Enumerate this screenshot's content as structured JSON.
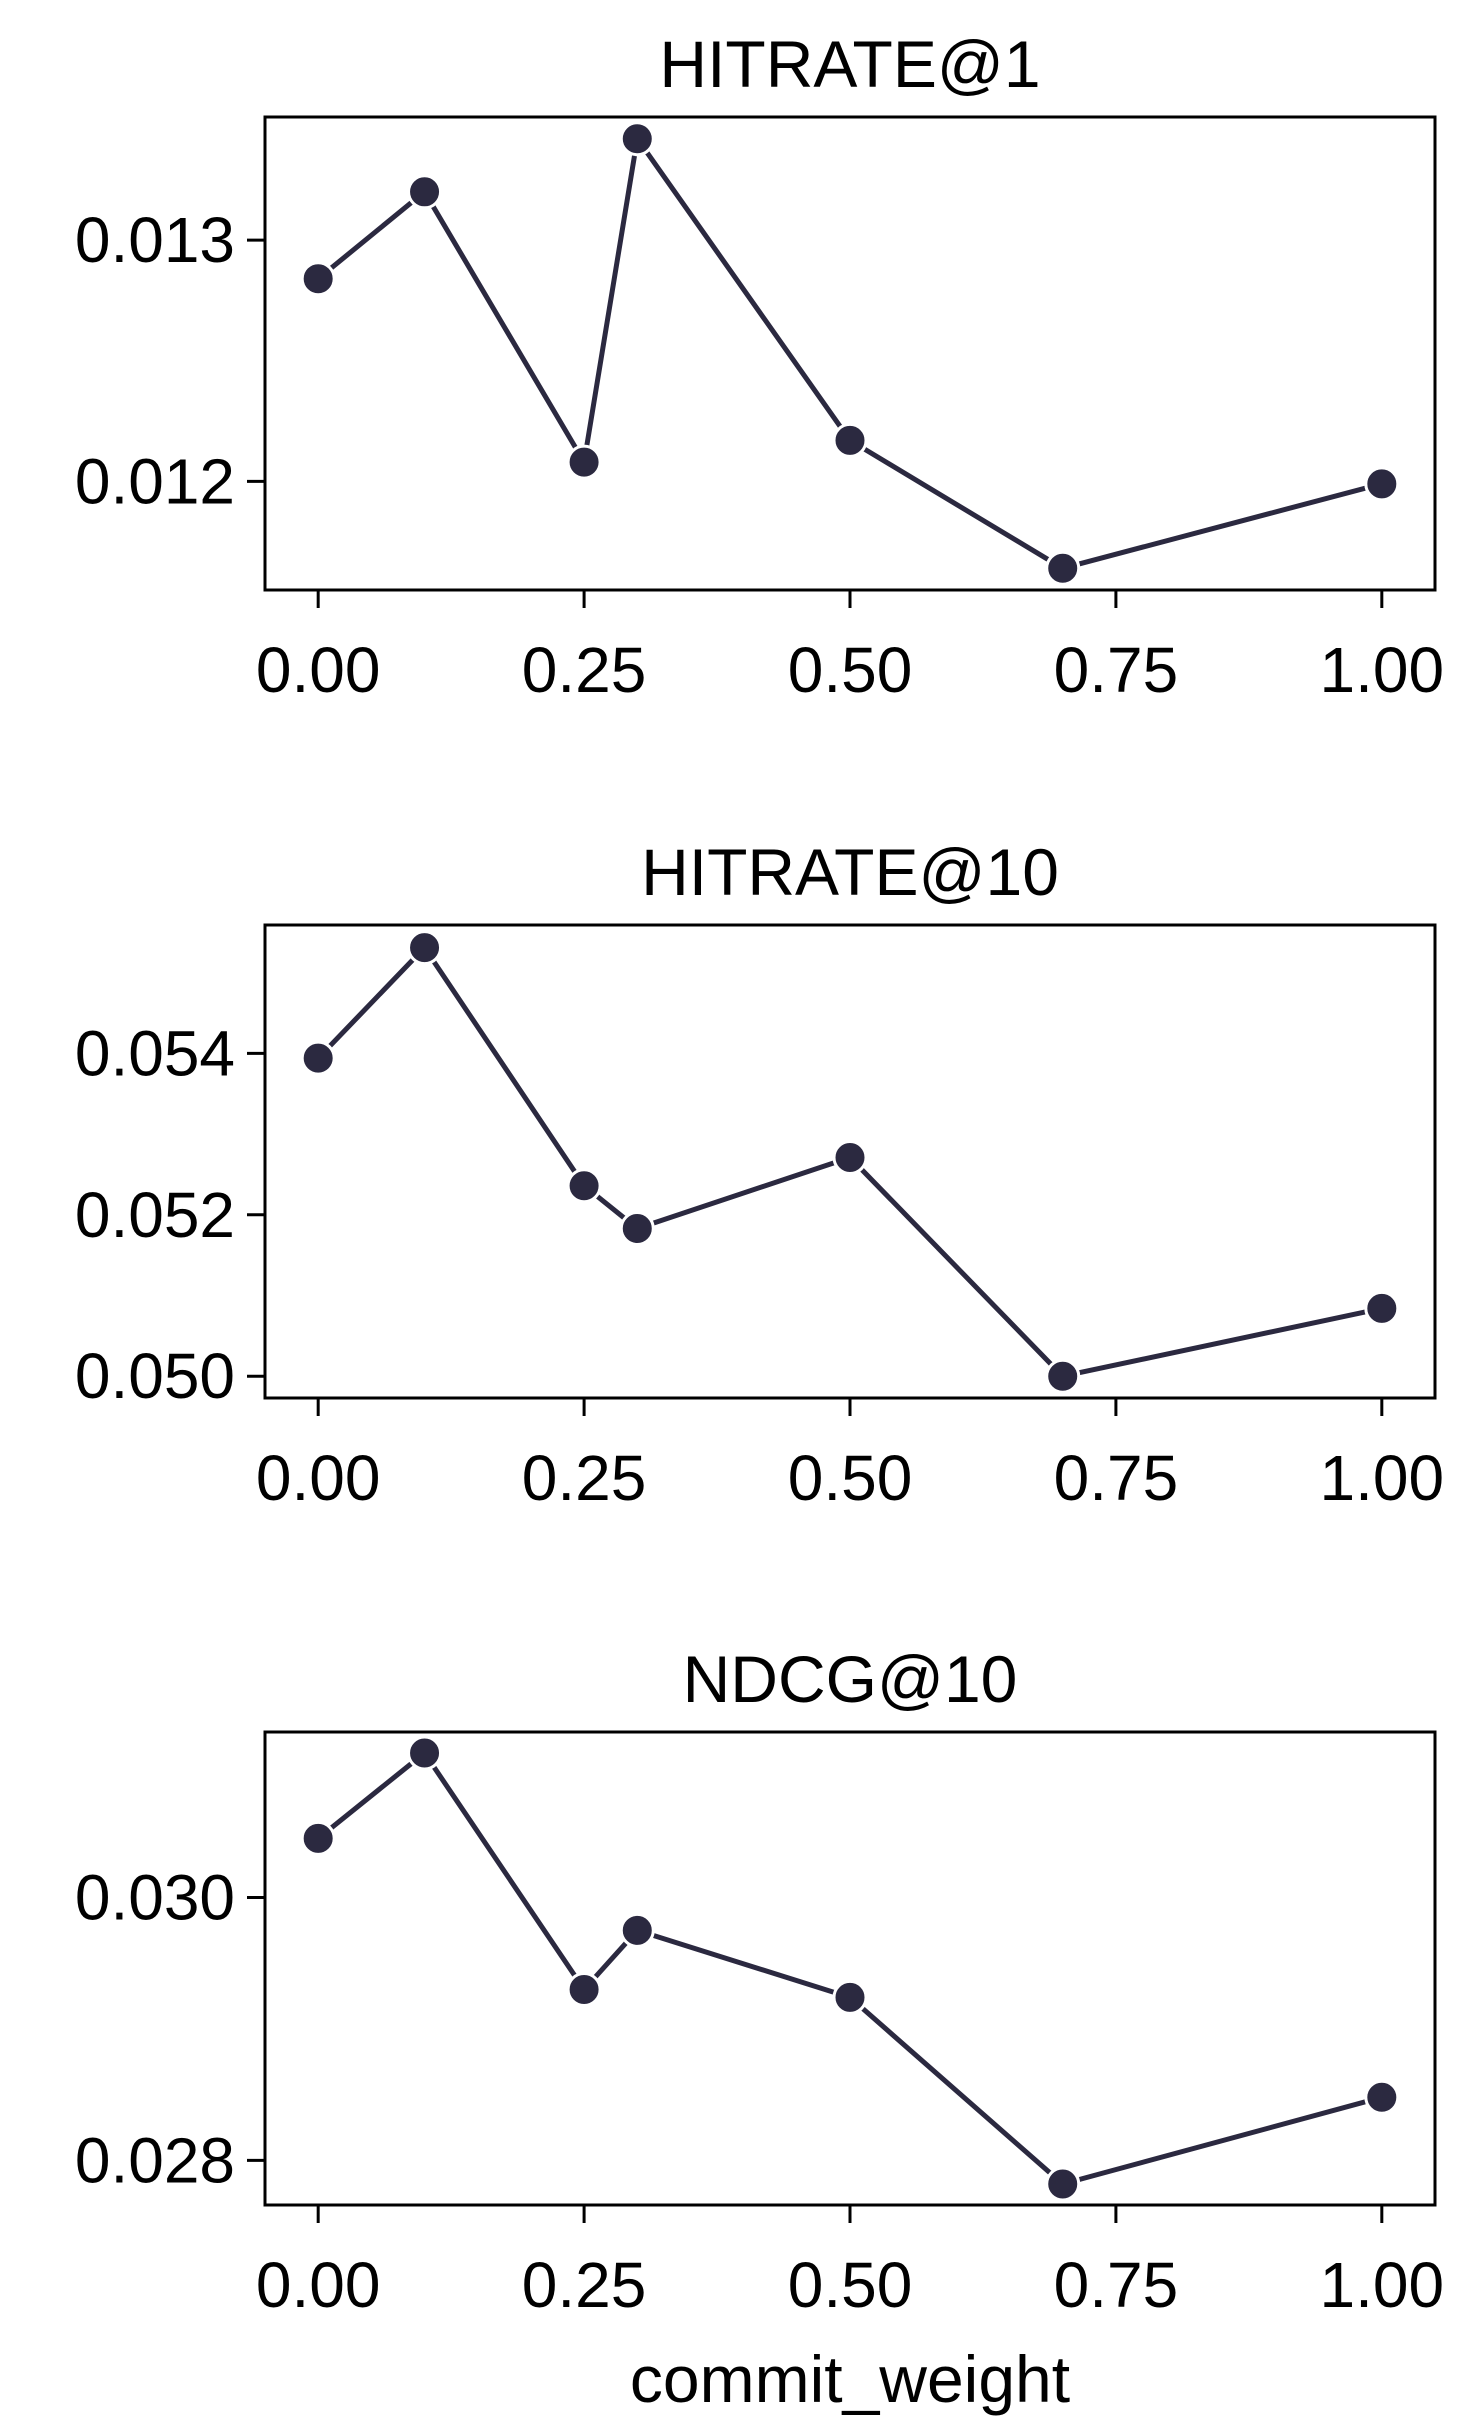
{
  "colors": {
    "line": "#2b2940",
    "marker": "#2b2940",
    "marker_edge": "#ffffff",
    "frame": "#000000"
  },
  "chart_data": [
    {
      "type": "line",
      "title": "HITRATE@1",
      "xlabel": "",
      "ylabel": "",
      "x": [
        0.0,
        0.1,
        0.25,
        0.3,
        0.5,
        0.7,
        1.0
      ],
      "values": [
        0.01284,
        0.0132,
        0.01208,
        0.01342,
        0.01217,
        0.01164,
        0.01199
      ],
      "xlim": [
        -0.05,
        1.05
      ],
      "ylim": [
        0.01155,
        0.01351
      ],
      "xticks": [
        0.0,
        0.25,
        0.5,
        0.75,
        1.0
      ],
      "xtick_labels": [
        "0.00",
        "0.25",
        "0.50",
        "0.75",
        "1.00"
      ],
      "yticks": [
        0.012,
        0.013
      ],
      "ytick_labels": [
        "0.012",
        "0.013"
      ]
    },
    {
      "type": "line",
      "title": "HITRATE@10",
      "xlabel": "",
      "ylabel": "",
      "x": [
        0.0,
        0.1,
        0.25,
        0.3,
        0.5,
        0.7,
        1.0
      ],
      "values": [
        0.05394,
        0.05531,
        0.05236,
        0.05183,
        0.05271,
        0.05,
        0.05084
      ],
      "xlim": [
        -0.05,
        1.05
      ],
      "ylim": [
        0.04973,
        0.05559
      ],
      "xticks": [
        0.0,
        0.25,
        0.5,
        0.75,
        1.0
      ],
      "xtick_labels": [
        "0.00",
        "0.25",
        "0.50",
        "0.75",
        "1.00"
      ],
      "yticks": [
        0.05,
        0.052,
        0.054
      ],
      "ytick_labels": [
        "0.050",
        "0.052",
        "0.054"
      ]
    },
    {
      "type": "line",
      "title": "NDCG@10",
      "xlabel": "commit_weight",
      "ylabel": "",
      "x": [
        0.0,
        0.1,
        0.25,
        0.3,
        0.5,
        0.7,
        1.0
      ],
      "values": [
        0.03045,
        0.0311,
        0.0293,
        0.02975,
        0.02924,
        0.02782,
        0.02848
      ],
      "xlim": [
        -0.05,
        1.05
      ],
      "ylim": [
        0.02766,
        0.03126
      ],
      "xticks": [
        0.0,
        0.25,
        0.5,
        0.75,
        1.0
      ],
      "xtick_labels": [
        "0.00",
        "0.25",
        "0.50",
        "0.75",
        "1.00"
      ],
      "yticks": [
        0.028,
        0.03
      ],
      "ytick_labels": [
        "0.028",
        "0.030"
      ]
    }
  ]
}
